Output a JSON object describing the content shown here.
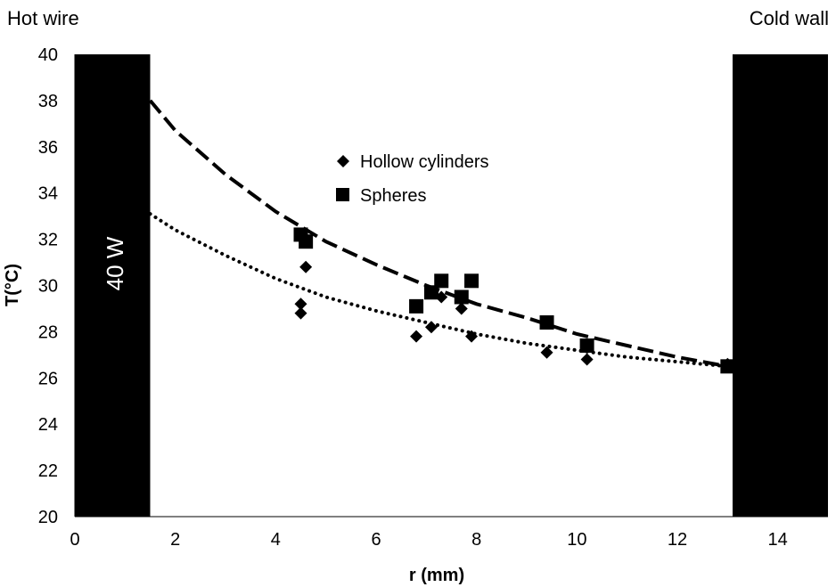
{
  "chart_data": {
    "type": "scatter",
    "xlabel": "r (mm)",
    "ylabel": "T(°C)",
    "xlim": [
      0,
      15
    ],
    "ylim": [
      20,
      40
    ],
    "xticks": [
      0,
      2,
      4,
      6,
      8,
      10,
      12,
      14
    ],
    "yticks": [
      20,
      22,
      24,
      26,
      28,
      30,
      32,
      34,
      36,
      38,
      40
    ],
    "grid": false,
    "legend_position": "center",
    "annotations": {
      "hot_label": "Hot wire",
      "cold_label": "Cold wall",
      "power_label": "40 W"
    },
    "regions": [
      {
        "name": "hot-wire",
        "x_range": [
          0,
          1.5
        ],
        "color": "#000000"
      },
      {
        "name": "cold-wall",
        "x_range": [
          13.1,
          15
        ],
        "color": "#000000"
      }
    ],
    "series": [
      {
        "name": "Hollow cylinders",
        "marker": "diamond",
        "color": "#000000",
        "points": [
          [
            4.5,
            29.2
          ],
          [
            4.5,
            28.8
          ],
          [
            4.6,
            30.8
          ],
          [
            6.8,
            27.8
          ],
          [
            7.1,
            28.2
          ],
          [
            7.3,
            29.5
          ],
          [
            7.7,
            29.0
          ],
          [
            7.9,
            27.8
          ],
          [
            9.4,
            27.1
          ],
          [
            10.2,
            26.8
          ],
          [
            13.0,
            26.6
          ]
        ]
      },
      {
        "name": "Spheres",
        "marker": "square",
        "color": "#000000",
        "points": [
          [
            4.5,
            32.2
          ],
          [
            4.6,
            31.9
          ],
          [
            6.8,
            29.1
          ],
          [
            7.1,
            29.7
          ],
          [
            7.3,
            30.2
          ],
          [
            7.7,
            29.5
          ],
          [
            7.9,
            30.2
          ],
          [
            9.4,
            28.4
          ],
          [
            10.2,
            27.4
          ],
          [
            13.0,
            26.5
          ]
        ]
      }
    ],
    "trendlines": [
      {
        "series": "Spheres",
        "style": "dashed",
        "points": [
          [
            1.5,
            38.0
          ],
          [
            2.0,
            36.7
          ],
          [
            3.0,
            34.8
          ],
          [
            4.0,
            33.2
          ],
          [
            5.0,
            31.9
          ],
          [
            6.0,
            30.9
          ],
          [
            7.0,
            30.0
          ],
          [
            8.0,
            29.2
          ],
          [
            9.0,
            28.6
          ],
          [
            10.0,
            27.9
          ],
          [
            11.0,
            27.4
          ],
          [
            12.0,
            26.9
          ],
          [
            13.0,
            26.5
          ]
        ]
      },
      {
        "series": "Hollow cylinders",
        "style": "dotted",
        "points": [
          [
            1.5,
            33.1
          ],
          [
            2.0,
            32.4
          ],
          [
            3.0,
            31.3
          ],
          [
            4.0,
            30.3
          ],
          [
            5.0,
            29.5
          ],
          [
            6.0,
            28.9
          ],
          [
            7.0,
            28.4
          ],
          [
            8.0,
            27.9
          ],
          [
            9.0,
            27.5
          ],
          [
            10.0,
            27.2
          ],
          [
            11.0,
            26.9
          ],
          [
            12.0,
            26.7
          ],
          [
            13.0,
            26.5
          ]
        ]
      }
    ]
  }
}
